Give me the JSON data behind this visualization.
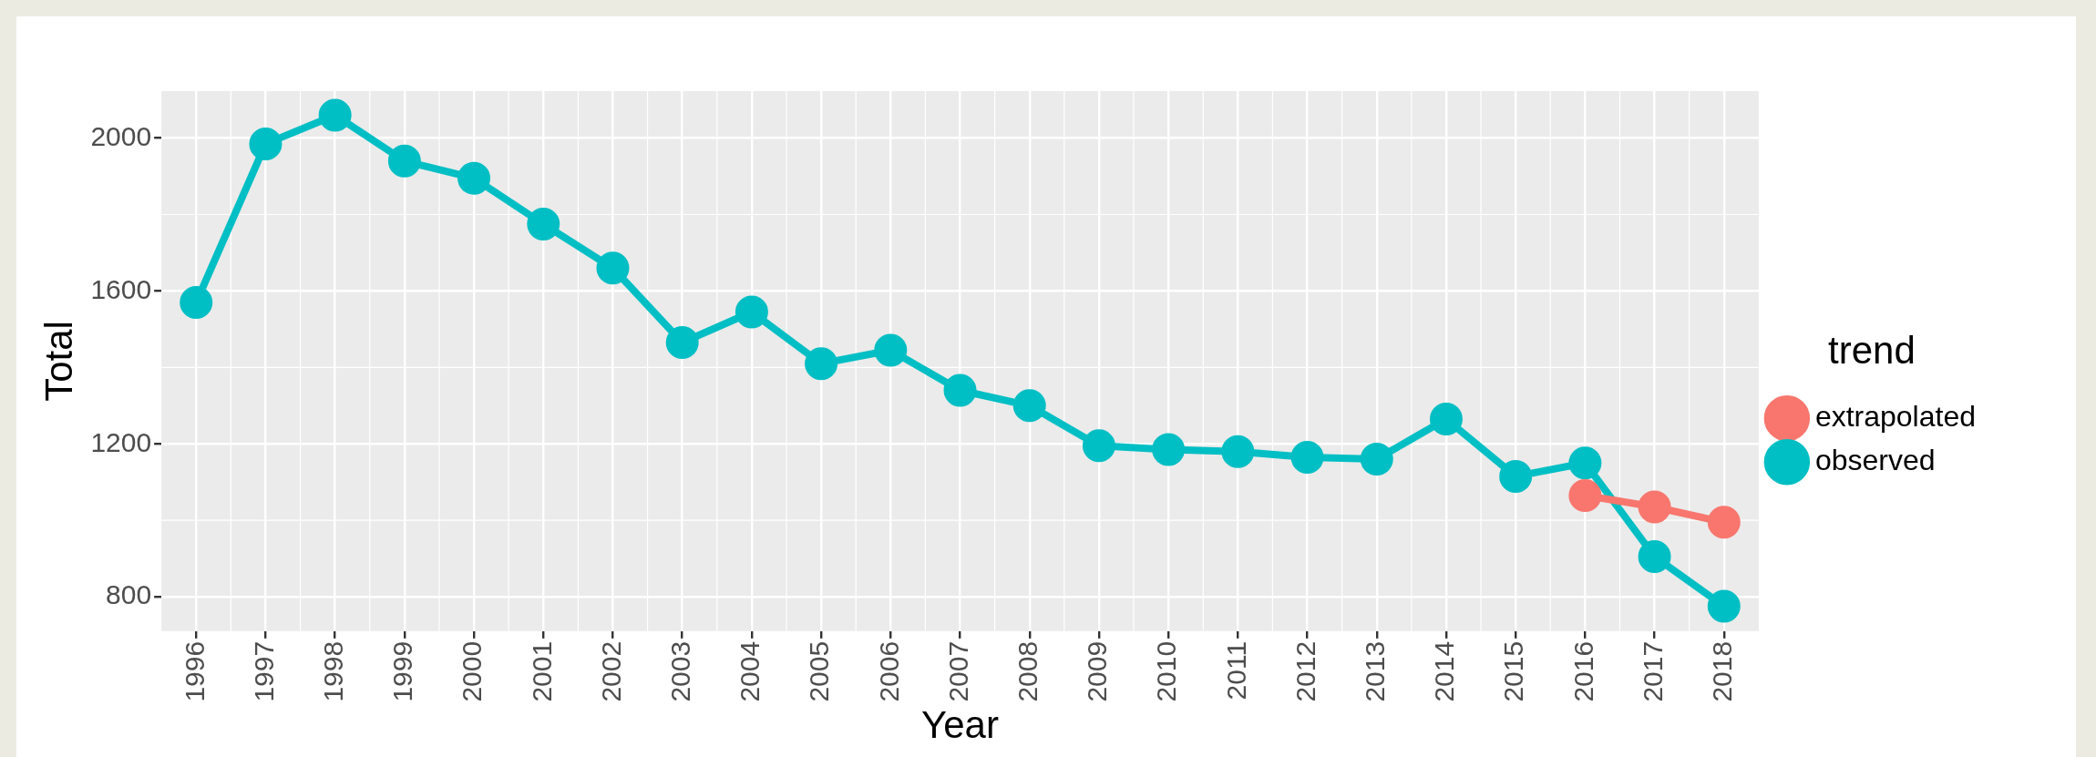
{
  "chart_data": {
    "type": "line",
    "xlabel": "Year",
    "ylabel": "Total",
    "legend_title": "trend",
    "legend": "right",
    "marker": "circle",
    "grid": true,
    "categories": [
      "1996",
      "1997",
      "1998",
      "1999",
      "2000",
      "2001",
      "2002",
      "2003",
      "2004",
      "2005",
      "2006",
      "2007",
      "2008",
      "2009",
      "2010",
      "2011",
      "2012",
      "2013",
      "2014",
      "2015",
      "2016",
      "2017",
      "2018"
    ],
    "ylim": [
      710,
      2123
    ],
    "yticks": [
      800,
      1200,
      1600,
      2000
    ],
    "series": [
      {
        "name": "extrapolated",
        "color": "#f8766d",
        "values": [
          null,
          null,
          null,
          null,
          null,
          null,
          null,
          null,
          null,
          null,
          null,
          null,
          null,
          null,
          null,
          null,
          null,
          null,
          null,
          null,
          1065,
          1035,
          995
        ]
      },
      {
        "name": "observed",
        "color": "#00bfc4",
        "values": [
          1570,
          1985,
          2060,
          1940,
          1895,
          1775,
          1660,
          1465,
          1545,
          1410,
          1445,
          1340,
          1300,
          1195,
          1185,
          1180,
          1165,
          1160,
          1265,
          1115,
          1150,
          905,
          775
        ]
      }
    ]
  }
}
